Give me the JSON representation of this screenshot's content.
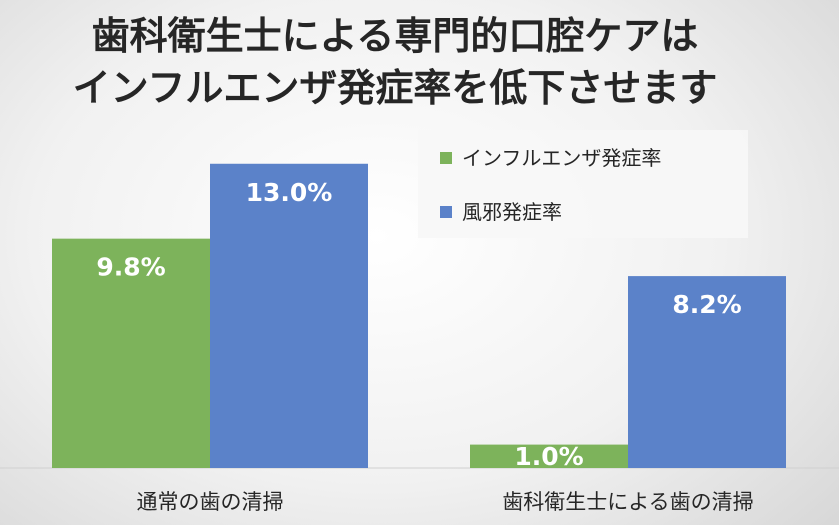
{
  "chart_data": {
    "type": "bar",
    "title_lines": [
      "歯科衛生士による専門的口腔ケアは",
      "インフルエンザ発症率を低下させます"
    ],
    "categories": [
      "通常の歯の清掃",
      "歯科衛生士による歯の清掃"
    ],
    "series": [
      {
        "name": "インフルエンザ発症率",
        "color": "#7db35b",
        "values": [
          9.8,
          1.0
        ],
        "labels": [
          "9.8%",
          "1.0%"
        ]
      },
      {
        "name": "風邪発症率",
        "color": "#5b82c9",
        "values": [
          13.0,
          8.2
        ],
        "labels": [
          "13.0%",
          "8.2%"
        ]
      }
    ],
    "ylim": [
      0,
      14.4
    ],
    "legend_position": "top-right",
    "grid": false
  }
}
